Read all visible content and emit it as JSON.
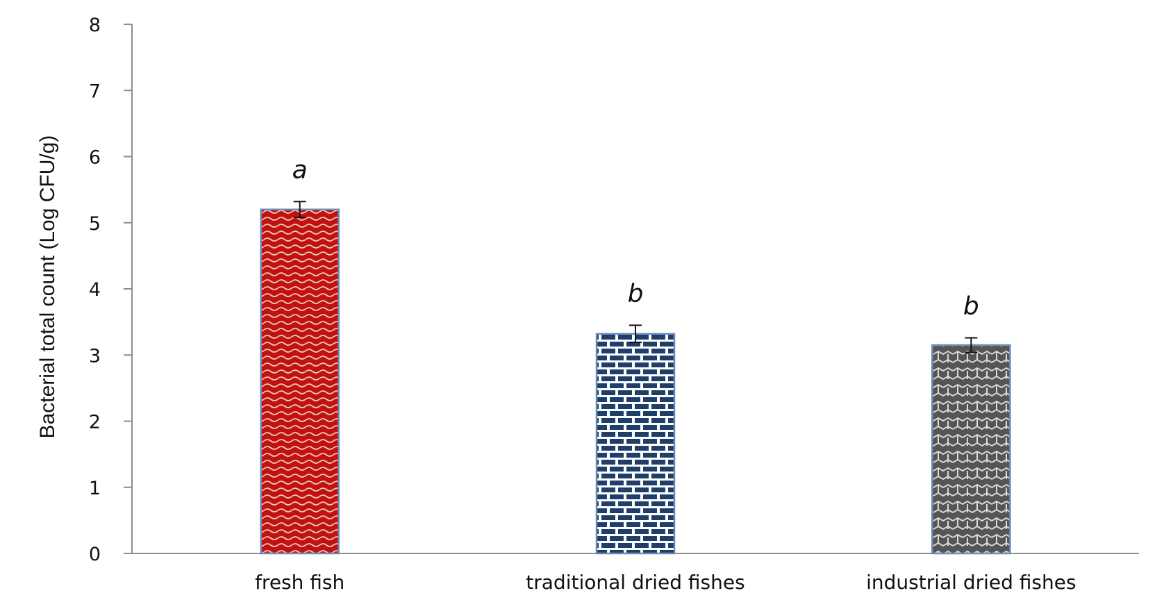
{
  "chart_data": {
    "type": "bar",
    "title": "",
    "xlabel": "",
    "ylabel": "Bacterial total count (Log CFU/g)",
    "ylim": [
      0,
      8
    ],
    "yticks": [
      "0",
      "1",
      "2",
      "3",
      "4",
      "5",
      "6",
      "7",
      "8"
    ],
    "grid": false,
    "legend": "none",
    "categories": [
      "fresh fish",
      "traditional dried fishes",
      "industrial dried fishes"
    ],
    "values": [
      5.2,
      3.32,
      3.15
    ],
    "errors": [
      0.12,
      0.13,
      0.11
    ],
    "significance_labels": [
      "a",
      "b",
      "b"
    ],
    "colors": [
      "#c0130f",
      "#1f3f6b",
      "#555555"
    ],
    "patterns": [
      "wave",
      "brick",
      "weave"
    ]
  }
}
